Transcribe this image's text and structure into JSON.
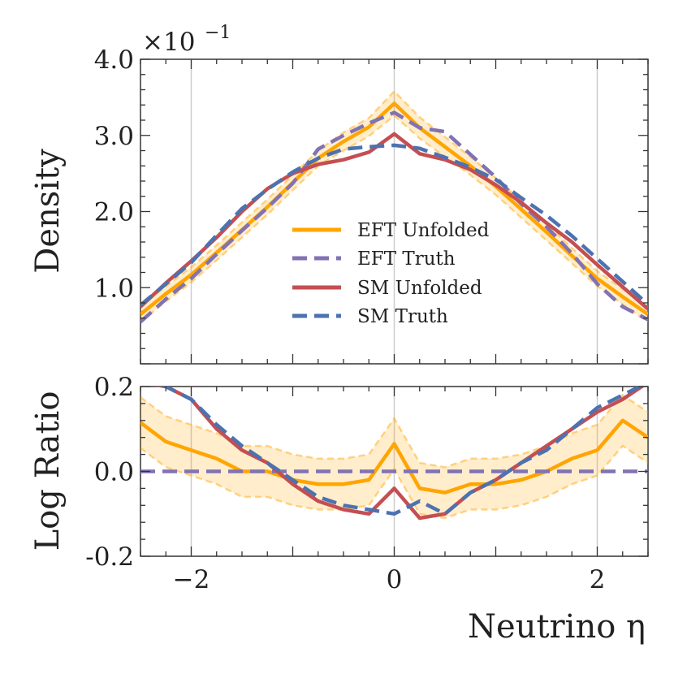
{
  "chart_data": [
    {
      "type": "line",
      "panel": "main",
      "ylabel": "Density",
      "xlabel": "",
      "multiplier": "×10",
      "multiplier_exp": "−1",
      "xlim": [
        -2.5,
        2.5
      ],
      "ylim": [
        0.0,
        4.0
      ],
      "yticks": [
        1.0,
        2.0,
        3.0,
        4.0
      ],
      "ytick_labels": [
        "1.0",
        "2.0",
        "3.0",
        "4.0"
      ],
      "xticks": [
        -2,
        0,
        2
      ],
      "grid_x": [
        -2,
        0,
        2
      ],
      "legend": {
        "position": "center-right",
        "entries": [
          "EFT Unfolded",
          "EFT Truth",
          "SM Unfolded",
          "SM Truth"
        ]
      },
      "x": [
        -2.5,
        -2.25,
        -2.0,
        -1.75,
        -1.5,
        -1.25,
        -1.0,
        -0.75,
        -0.5,
        -0.25,
        0.0,
        0.25,
        0.5,
        0.75,
        1.0,
        1.25,
        1.5,
        1.75,
        2.0,
        2.25,
        2.5
      ],
      "series": [
        {
          "name": "EFT Unfolded",
          "color": "#ffa500",
          "dash": "solid",
          "values": [
            0.65,
            0.92,
            1.17,
            1.46,
            1.76,
            2.06,
            2.38,
            2.7,
            2.92,
            3.11,
            3.42,
            3.1,
            2.85,
            2.6,
            2.33,
            2.03,
            1.73,
            1.42,
            1.12,
            0.88,
            0.65
          ],
          "band_low": [
            0.55,
            0.82,
            1.07,
            1.36,
            1.66,
            1.96,
            2.28,
            2.6,
            2.8,
            2.99,
            3.26,
            2.96,
            2.72,
            2.48,
            2.22,
            1.92,
            1.62,
            1.32,
            1.02,
            0.78,
            0.55
          ],
          "band_high": [
            0.75,
            1.02,
            1.27,
            1.56,
            1.86,
            2.16,
            2.48,
            2.8,
            3.04,
            3.23,
            3.58,
            3.24,
            2.98,
            2.72,
            2.44,
            2.14,
            1.84,
            1.52,
            1.22,
            0.98,
            0.75
          ]
        },
        {
          "name": "EFT Truth",
          "color": "#8172b3",
          "dash": "dashed",
          "values": [
            0.55,
            0.85,
            1.12,
            1.44,
            1.75,
            2.05,
            2.37,
            2.82,
            3.0,
            3.16,
            3.3,
            3.1,
            3.05,
            2.75,
            2.45,
            2.1,
            1.8,
            1.45,
            1.05,
            0.75,
            0.58
          ]
        },
        {
          "name": "SM Unfolded",
          "color": "#c44e52",
          "dash": "solid",
          "values": [
            0.75,
            1.06,
            1.35,
            1.66,
            2.0,
            2.3,
            2.5,
            2.62,
            2.68,
            2.78,
            3.02,
            2.76,
            2.68,
            2.55,
            2.35,
            2.12,
            1.85,
            1.6,
            1.3,
            1.01,
            0.72
          ]
        },
        {
          "name": "SM Truth",
          "color": "#4c72b0",
          "dash": "dashed",
          "values": [
            0.77,
            1.05,
            1.33,
            1.69,
            2.04,
            2.29,
            2.52,
            2.7,
            2.82,
            2.85,
            2.87,
            2.83,
            2.71,
            2.58,
            2.42,
            2.18,
            1.95,
            1.68,
            1.38,
            1.08,
            0.78
          ]
        }
      ]
    },
    {
      "type": "line",
      "panel": "ratio",
      "ylabel": "Log Ratio",
      "xlabel": "Neutrino η",
      "xlim": [
        -2.5,
        2.5
      ],
      "ylim": [
        -0.2,
        0.2
      ],
      "yticks": [
        -0.2,
        0.0,
        0.2
      ],
      "ytick_labels": [
        "-0.2",
        "0.0",
        "0.2"
      ],
      "xticks": [
        -2,
        0,
        2
      ],
      "xtick_labels": [
        "−2",
        "0",
        "2"
      ],
      "grid_x": [
        -2,
        0,
        2
      ],
      "x": [
        -2.5,
        -2.25,
        -2.0,
        -1.75,
        -1.5,
        -1.25,
        -1.0,
        -0.75,
        -0.5,
        -0.25,
        0.0,
        0.25,
        0.5,
        0.75,
        1.0,
        1.25,
        1.5,
        1.75,
        2.0,
        2.25,
        2.5
      ],
      "series": [
        {
          "name": "EFT Unfolded",
          "color": "#ffa500",
          "dash": "solid",
          "values": [
            0.115,
            0.07,
            0.05,
            0.03,
            0.0,
            0.0,
            -0.02,
            -0.03,
            -0.03,
            -0.02,
            0.065,
            -0.04,
            -0.05,
            -0.03,
            -0.03,
            -0.02,
            0.0,
            0.03,
            0.05,
            0.12,
            0.08
          ],
          "band_low": [
            0.055,
            0.01,
            -0.01,
            -0.03,
            -0.06,
            -0.06,
            -0.08,
            -0.09,
            -0.09,
            -0.08,
            0.005,
            -0.1,
            -0.11,
            -0.09,
            -0.09,
            -0.08,
            -0.06,
            -0.03,
            -0.01,
            0.06,
            0.02
          ],
          "band_high": [
            0.175,
            0.13,
            0.11,
            0.09,
            0.06,
            0.06,
            0.04,
            0.03,
            0.03,
            0.04,
            0.125,
            0.02,
            0.01,
            0.03,
            0.03,
            0.04,
            0.06,
            0.09,
            0.11,
            0.18,
            0.14
          ]
        },
        {
          "name": "EFT Truth",
          "color": "#8172b3",
          "dash": "dashed",
          "values": [
            0.0,
            0.0,
            0.0,
            0.0,
            0.0,
            0.0,
            0.0,
            0.0,
            0.0,
            0.0,
            0.0,
            0.0,
            0.0,
            0.0,
            0.0,
            0.0,
            0.0,
            0.0,
            0.0,
            0.0,
            0.0
          ]
        },
        {
          "name": "SM Unfolded",
          "color": "#c44e52",
          "dash": "solid",
          "values": [
            0.21,
            0.2,
            0.17,
            0.1,
            0.05,
            0.02,
            -0.03,
            -0.07,
            -0.09,
            -0.1,
            -0.04,
            -0.11,
            -0.1,
            -0.05,
            -0.02,
            0.02,
            0.06,
            0.1,
            0.14,
            0.17,
            0.21
          ]
        },
        {
          "name": "SM Truth",
          "color": "#4c72b0",
          "dash": "dashed",
          "values": [
            0.21,
            0.2,
            0.17,
            0.11,
            0.06,
            0.02,
            -0.02,
            -0.06,
            -0.08,
            -0.09,
            -0.1,
            -0.07,
            -0.1,
            -0.05,
            -0.02,
            0.02,
            0.05,
            0.1,
            0.15,
            0.18,
            0.21
          ]
        }
      ]
    }
  ]
}
